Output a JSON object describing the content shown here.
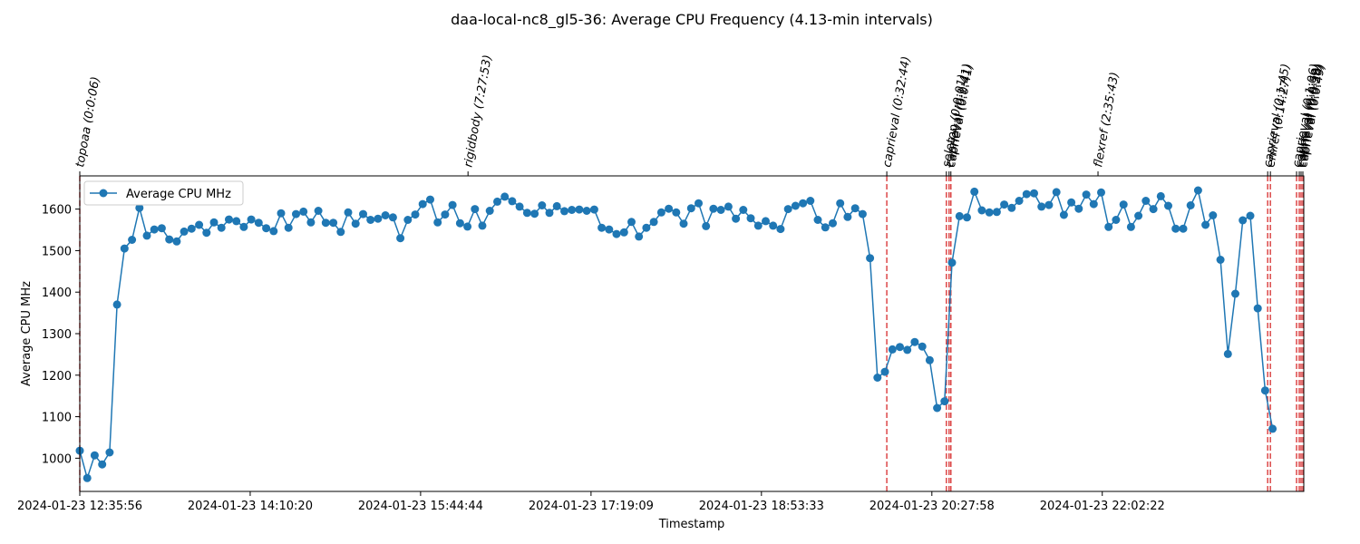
{
  "chart_data": {
    "type": "line",
    "title": "daa-local-nc8_gl5-36: Average CPU Frequency (4.13-min intervals)",
    "xlabel": "Timestamp",
    "ylabel": "Average CPU MHz",
    "x_start": "2024-01-23 12:35:56",
    "x_end": "2024-01-23 23:54:00",
    "xlim": [
      "2024-01-23 12:35:56",
      "2024-01-23 23:54:00"
    ],
    "ylim": [
      920,
      1680
    ],
    "x_ticks": [
      "2024-01-23 12:35:56",
      "2024-01-23 14:10:20",
      "2024-01-23 15:44:44",
      "2024-01-23 17:19:09",
      "2024-01-23 18:53:33",
      "2024-01-23 20:27:58",
      "2024-01-23 22:02:22"
    ],
    "y_ticks": [
      1000,
      1100,
      1200,
      1300,
      1400,
      1500,
      1600
    ],
    "grid": false,
    "legend_position": "upper-left",
    "interval_minutes": 4.13,
    "series": [
      {
        "name": "Average CPU MHz",
        "color": "#1f77b4",
        "values": [
          1018,
          952,
          1007,
          985,
          1014,
          1370,
          1505,
          1526,
          1603,
          1536,
          1551,
          1554,
          1527,
          1522,
          1546,
          1553,
          1562,
          1543,
          1568,
          1555,
          1575,
          1571,
          1557,
          1575,
          1567,
          1554,
          1547,
          1590,
          1555,
          1588,
          1594,
          1568,
          1596,
          1567,
          1567,
          1545,
          1592,
          1565,
          1588,
          1574,
          1577,
          1585,
          1580,
          1530,
          1574,
          1587,
          1612,
          1623,
          1568,
          1587,
          1610,
          1566,
          1558,
          1600,
          1560,
          1596,
          1618,
          1630,
          1619,
          1606,
          1591,
          1589,
          1609,
          1591,
          1607,
          1595,
          1598,
          1599,
          1596,
          1599,
          1555,
          1551,
          1540,
          1544,
          1569,
          1534,
          1555,
          1569,
          1592,
          1601,
          1592,
          1565,
          1602,
          1614,
          1559,
          1601,
          1598,
          1606,
          1577,
          1598,
          1578,
          1560,
          1571,
          1560,
          1552,
          1600,
          1608,
          1614,
          1620,
          1574,
          1556,
          1566,
          1614,
          1581,
          1602,
          1588,
          1482,
          1194,
          1208,
          1262,
          1268,
          1261,
          1280,
          1269,
          1236,
          1121,
          1137,
          1471,
          1583,
          1580,
          1642,
          1597,
          1592,
          1593,
          1611,
          1603,
          1620,
          1636,
          1638,
          1606,
          1610,
          1641,
          1586,
          1616,
          1601,
          1635,
          1612,
          1640,
          1557,
          1574,
          1611,
          1557,
          1584,
          1620,
          1600,
          1631,
          1608,
          1553,
          1553,
          1609,
          1645,
          1562,
          1585,
          1478,
          1251,
          1396,
          1573,
          1584,
          1361,
          1163,
          1071
        ]
      }
    ],
    "annotations": [
      {
        "label": "topoaa (0:0:06)",
        "time": "2024-01-23 12:35:56",
        "color": "#d62728"
      },
      {
        "label": "rigidbody (7:27:53)",
        "time": "2024-01-23 16:11:00"
      },
      {
        "label": "caprieval (0:32:44)",
        "time": "2024-01-23 20:03:00",
        "color": "#d62728"
      },
      {
        "label": "seletop (0:0:01)",
        "time": "2024-01-23 20:36:00",
        "color": "#d62728"
      },
      {
        "label": "caprieval (0:1:41)",
        "time": "2024-01-23 20:37:30",
        "color": "#d62728"
      },
      {
        "label": "caprieval (0:0:41)",
        "time": "2024-01-23 20:38:30",
        "color": "#d62728"
      },
      {
        "label": "flexref (2:35:43)",
        "time": "2024-01-23 22:00:00"
      },
      {
        "label": "caprieval (0:1:45)",
        "time": "2024-01-23 23:34:00",
        "color": "#d62728"
      },
      {
        "label": "emref (0:14:27)",
        "time": "2024-01-23 23:35:30",
        "color": "#d62728"
      },
      {
        "label": "caprieval (0:1:06)",
        "time": "2024-01-23 23:50:00",
        "color": "#d62728"
      },
      {
        "label": "caprieval (0:0:59)",
        "time": "2024-01-23 23:51:30",
        "color": "#d62728"
      },
      {
        "label": "caprieval (0:0:30)",
        "time": "2024-01-23 23:52:30",
        "color": "#d62728"
      },
      {
        "label": "caprieval (0:0:49)",
        "time": "2024-01-23 23:53:30",
        "color": "#d62728"
      }
    ]
  }
}
